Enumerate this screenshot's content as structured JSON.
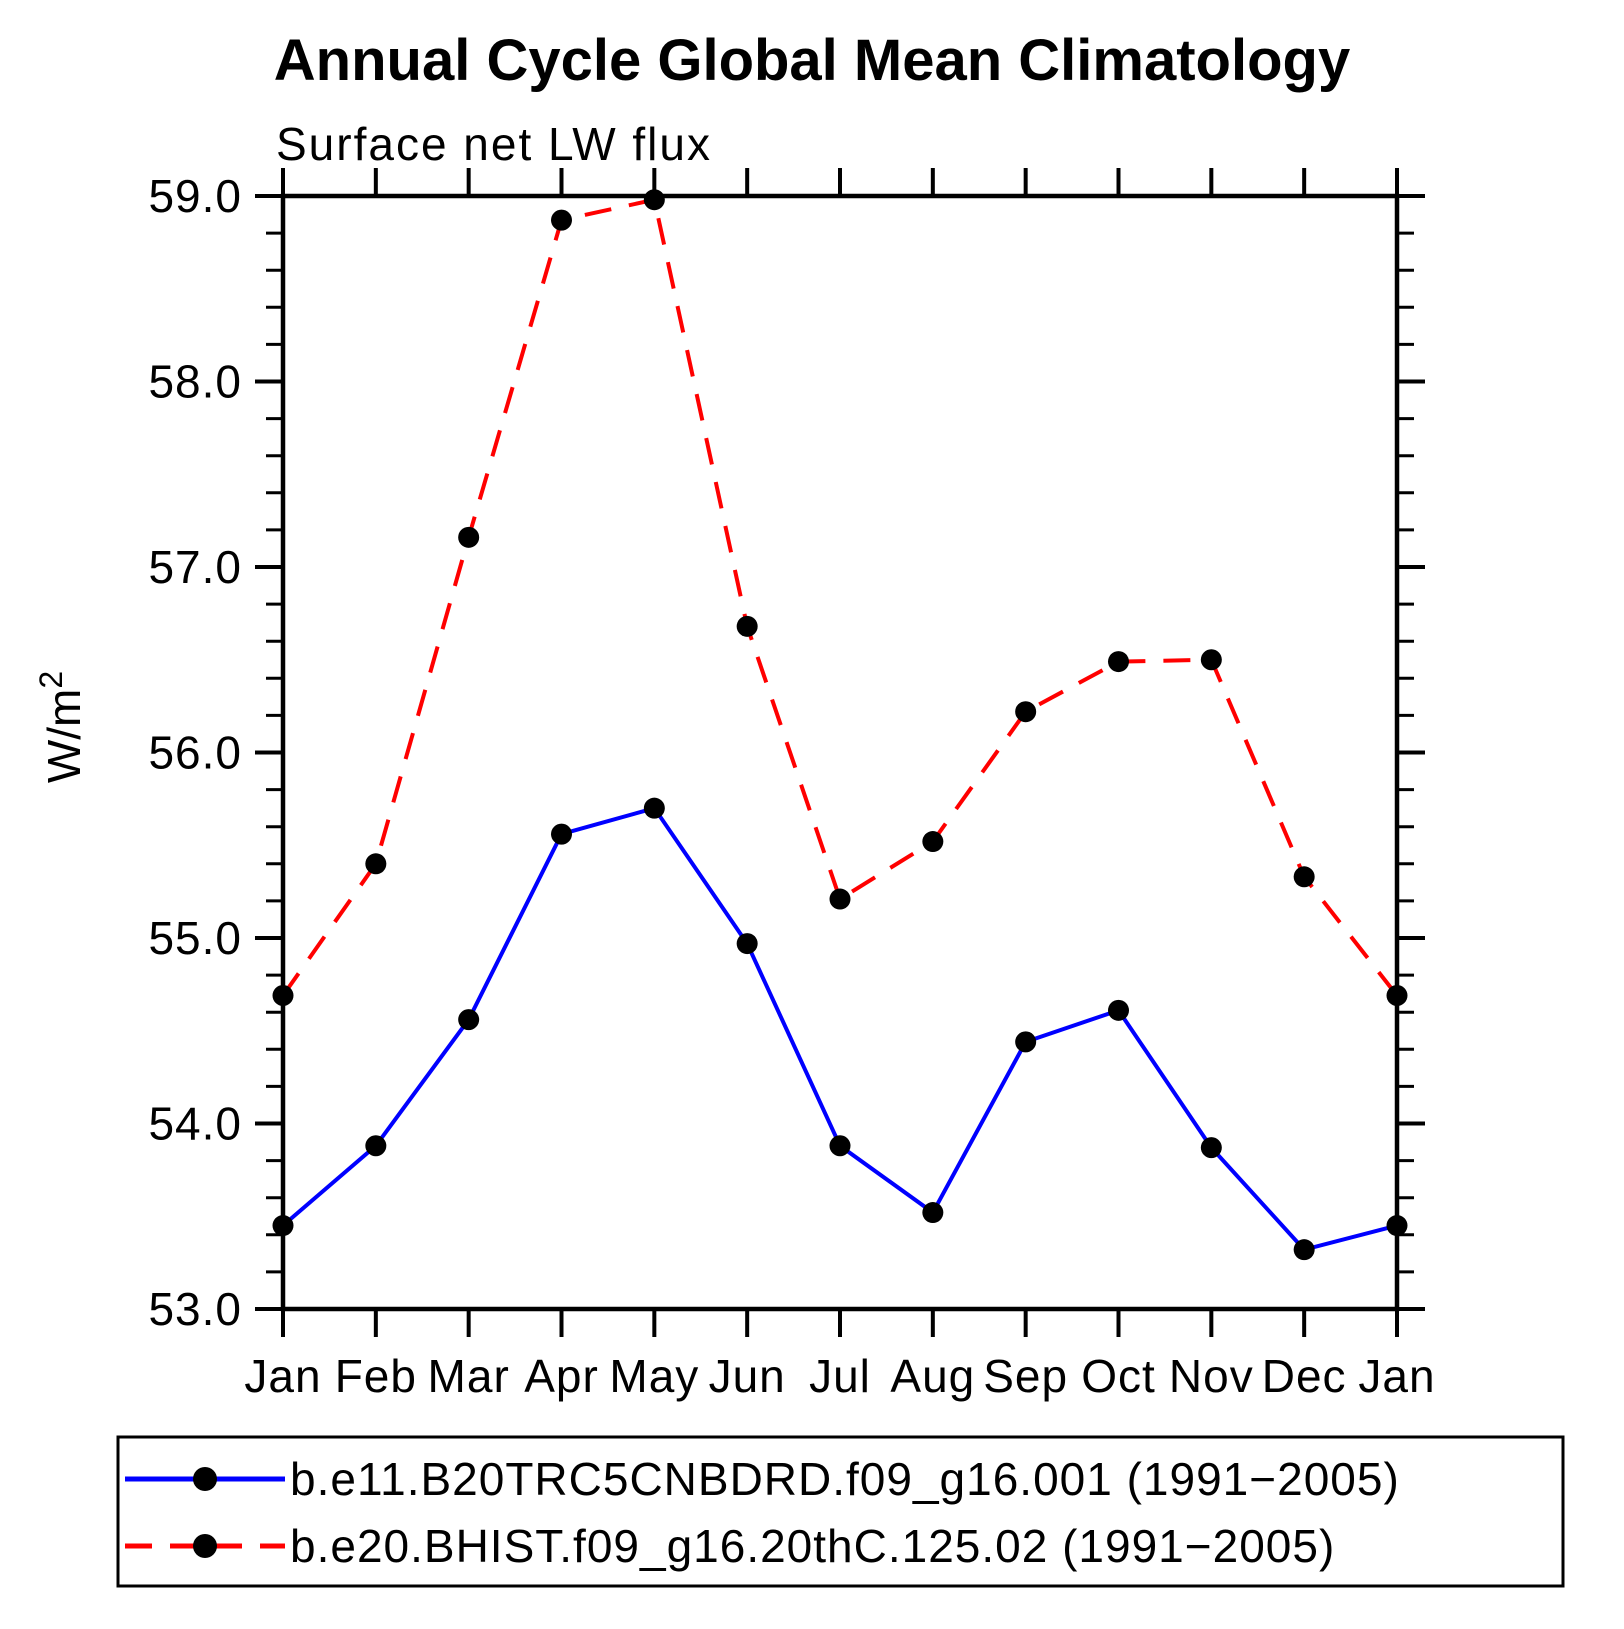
{
  "title": "Annual Cycle Global Mean Climatology",
  "subtitle": "Surface net LW flux",
  "y_axis": {
    "unit_base": "W/m",
    "unit_exp": "2",
    "label": "W/m²",
    "min": 53.0,
    "max": 59.0,
    "major_step": 1.0,
    "minor_step": 0.2,
    "tick_labels": [
      "53.0",
      "54.0",
      "55.0",
      "56.0",
      "57.0",
      "58.0",
      "59.0"
    ]
  },
  "x_axis": {
    "labels": [
      "Jan",
      "Feb",
      "Mar",
      "Apr",
      "May",
      "Jun",
      "Jul",
      "Aug",
      "Sep",
      "Oct",
      "Nov",
      "Dec",
      "Jan"
    ]
  },
  "legend": {
    "position": "bottom",
    "entries": [
      {
        "label": "b.e11.B20TRC5CNBDRD.f09_g16.001 (1991−2005)",
        "color": "#0000ff",
        "line_style": "solid",
        "marker": "circle",
        "marker_color": "#000000"
      },
      {
        "label": "b.e20.BHIST.f09_g16.20thC.125.02 (1991−2005)",
        "color": "#ff0000",
        "line_style": "dashed",
        "marker": "circle",
        "marker_color": "#000000"
      }
    ]
  },
  "chart_data": {
    "type": "line",
    "title": "Annual Cycle Global Mean Climatology",
    "subtitle": "Surface net LW flux",
    "ylabel": "W/m²",
    "xlabel": "",
    "ylim": [
      53.0,
      59.0
    ],
    "grid": false,
    "legend_position": "bottom",
    "categories": [
      "Jan",
      "Feb",
      "Mar",
      "Apr",
      "May",
      "Jun",
      "Jul",
      "Aug",
      "Sep",
      "Oct",
      "Nov",
      "Dec",
      "Jan"
    ],
    "series": [
      {
        "name": "b.e11.B20TRC5CNBDRD.f09_g16.001 (1991−2005)",
        "color": "#0000ff",
        "line_style": "solid",
        "marker": "circle",
        "marker_color": "#000000",
        "values": [
          53.45,
          53.88,
          54.56,
          55.56,
          55.7,
          54.97,
          53.88,
          53.52,
          54.44,
          54.61,
          53.87,
          53.32,
          53.45
        ]
      },
      {
        "name": "b.e20.BHIST.f09_g16.20thC.125.02 (1991−2005)",
        "color": "#ff0000",
        "line_style": "dashed",
        "marker": "circle",
        "marker_color": "#000000",
        "values": [
          54.69,
          55.4,
          57.16,
          58.87,
          58.98,
          56.68,
          55.21,
          55.52,
          56.22,
          56.49,
          56.5,
          55.33,
          54.69
        ]
      }
    ]
  }
}
